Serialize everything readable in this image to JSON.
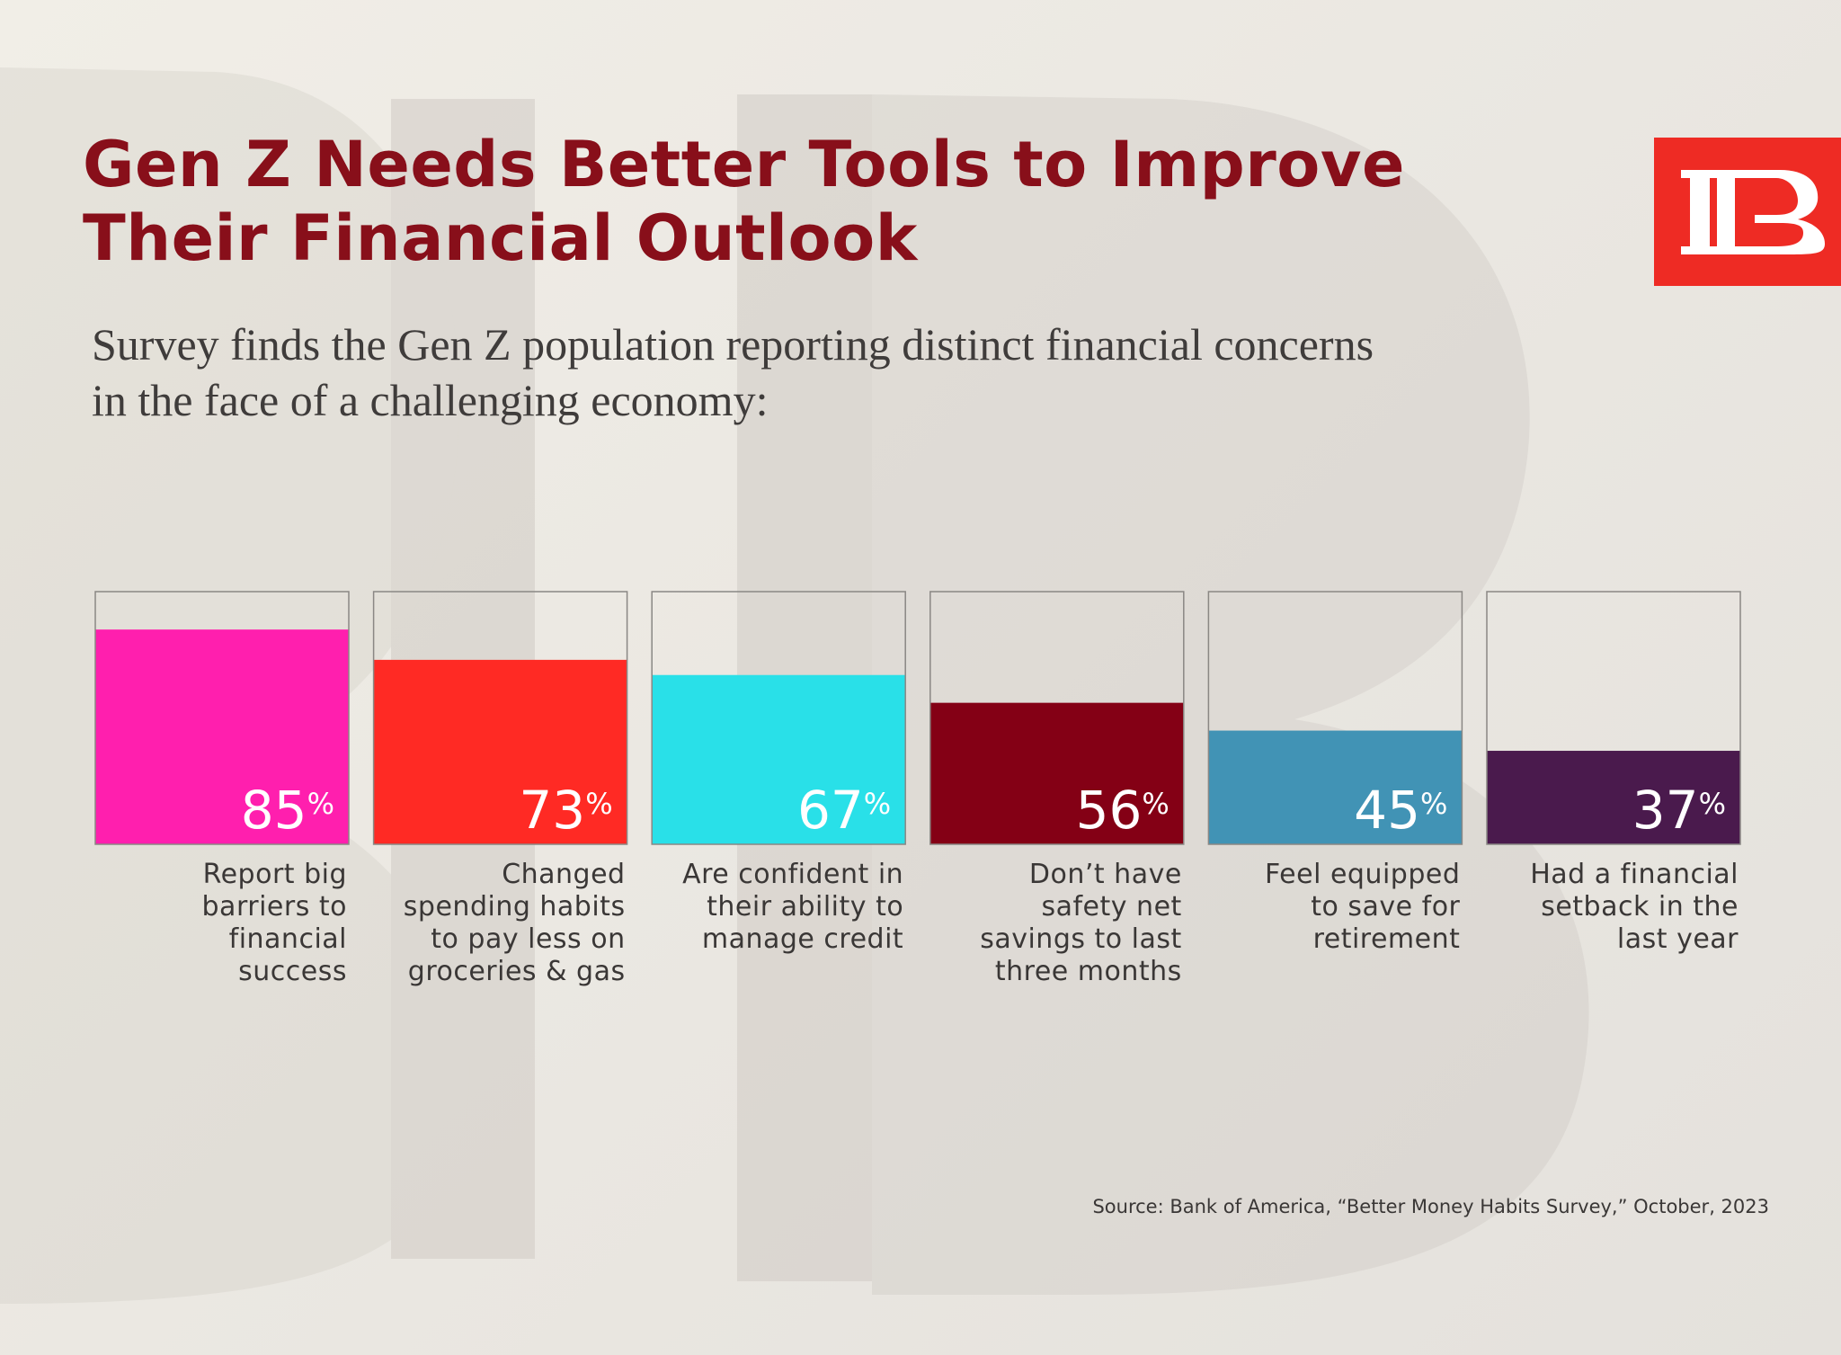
{
  "title_line1": "Gen Z Needs Better Tools to Improve",
  "title_line2": "Their Financial Outlook",
  "subtitle_line1": "Survey finds the Gen Z population reporting distinct financial concerns",
  "subtitle_line2": "in the face of a challenging economy:",
  "logo_text": "IBB",
  "source": "Source: Bank of America, “Better Money Habits Survey,” October, 2023",
  "colors": {
    "title": "#880f1a",
    "logo_bg": "#ee2b24",
    "box_border": "#8a8784"
  },
  "chart_data": {
    "type": "bar",
    "ylim": [
      0,
      100
    ],
    "unit": "%",
    "grid": false,
    "bars": [
      {
        "value": 85,
        "color": "#ff1fae",
        "label_lines": [
          "Report big",
          "barriers to",
          "financial",
          "success"
        ]
      },
      {
        "value": 73,
        "color": "#ff2a24",
        "label_lines": [
          "Changed",
          "spending habits",
          "to pay less on",
          "groceries & gas"
        ]
      },
      {
        "value": 67,
        "color": "#29e0e8",
        "label_lines": [
          "Are confident in",
          "their ability to",
          "manage credit"
        ]
      },
      {
        "value": 56,
        "color": "#840015",
        "label_lines": [
          "Don’t have",
          "safety net",
          "savings to last",
          "three months"
        ]
      },
      {
        "value": 45,
        "color": "#4193b5",
        "label_lines": [
          "Feel equipped",
          "to save for",
          "retirement"
        ]
      },
      {
        "value": 37,
        "color": "#4a1a4d",
        "label_lines": [
          "Had a financial",
          "setback in the",
          "last year"
        ]
      }
    ]
  }
}
